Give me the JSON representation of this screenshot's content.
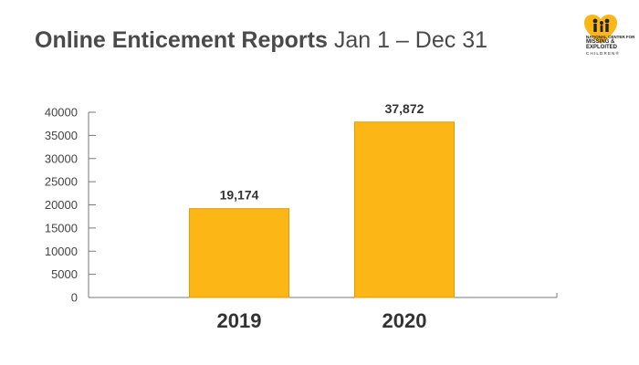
{
  "header": {
    "title_bold": "Online Enticement Reports",
    "title_light": "Jan 1 – Dec 31"
  },
  "logo": {
    "icon": "heart-children-icon",
    "line1": "NATIONAL CENTER FOR",
    "line2": "MISSING &",
    "line3": "EXPLOITED",
    "line4": "CHILDREN®",
    "accent_color": "#fcb716"
  },
  "chart_data": {
    "type": "bar",
    "categories": [
      "2019",
      "2020"
    ],
    "values": [
      19174,
      37872
    ],
    "value_labels": [
      "19,174",
      "37,872"
    ],
    "title": "Online Enticement Reports Jan 1 – Dec 31",
    "xlabel": "",
    "ylabel": "",
    "ylim": [
      0,
      40000
    ],
    "yticks": [
      0,
      5000,
      10000,
      15000,
      20000,
      25000,
      30000,
      35000,
      40000
    ],
    "ytick_labels": [
      "0",
      "5000",
      "10000",
      "15000",
      "20000",
      "25000",
      "30000",
      "35000",
      "40000"
    ],
    "grid": false,
    "legend": "none",
    "bar_color": "#fcb716",
    "bar_edge_color": "#e49b00",
    "axis_color": "#7a7a7a"
  }
}
